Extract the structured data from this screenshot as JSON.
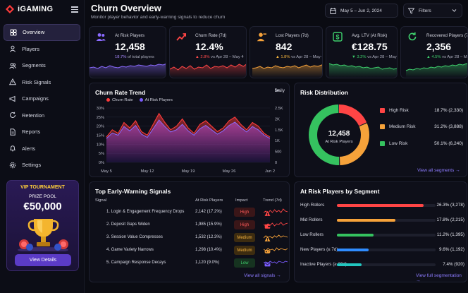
{
  "brand": {
    "name": "iGAMING"
  },
  "nav": [
    {
      "label": "Overview",
      "icon": "grid-icon",
      "active": true
    },
    {
      "label": "Players",
      "icon": "user-icon"
    },
    {
      "label": "Segments",
      "icon": "users-icon"
    },
    {
      "label": "Risk Signals",
      "icon": "alert-triangle-icon"
    },
    {
      "label": "Campaigns",
      "icon": "megaphone-icon"
    },
    {
      "label": "Retention",
      "icon": "refresh-icon"
    },
    {
      "label": "Reports",
      "icon": "file-icon"
    },
    {
      "label": "Alerts",
      "icon": "bell-icon"
    },
    {
      "label": "Settings",
      "icon": "gear-icon"
    }
  ],
  "promo": {
    "vip": "VIP TOURNAMENT",
    "prize_label": "PRIZE POOL",
    "amount": "€50,000",
    "button": "View Details"
  },
  "header": {
    "title": "Churn Overview",
    "subtitle": "Monitor player behavior and early-warning signals to reduce churn",
    "date_range": "May 5 – Jun 2, 2024",
    "filters_label": "Filters"
  },
  "kpis": [
    {
      "label": "At Risk Players",
      "value": "12,458",
      "delta": "18.7%",
      "delta_suffix": " of total players",
      "delta_type": "pct",
      "color": "#8b6bff",
      "icon": "users-icon"
    },
    {
      "label": "Churn Rate (7d)",
      "value": "12.4%",
      "delta": "▲ 2.8%",
      "delta_suffix": " vs Apr 28 – May 4",
      "delta_type": "dn",
      "color": "#ff4545",
      "icon": "trend-up-icon"
    },
    {
      "label": "Lost Players (7d)",
      "value": "842",
      "delta": "▲ 1.8%",
      "delta_suffix": " vs Apr 28 – May 4",
      "delta_type": "warn",
      "color": "#f6a23a",
      "icon": "user-minus-icon"
    },
    {
      "label": "Avg. LTV (At Risk)",
      "value": "€128.75",
      "delta": "▼ 3.2%",
      "delta_suffix": " vs Apr 28 – May 4",
      "delta_type": "up",
      "color": "#3ecf6c",
      "icon": "dollar-icon"
    },
    {
      "label": "Recovered Players (7d)",
      "value": "2,356",
      "delta": "▲ 4.5%",
      "delta_suffix": " vs Apr 28 – May 4",
      "delta_type": "up",
      "color": "#3ecf6c",
      "icon": "recycle-icon"
    }
  ],
  "trend": {
    "title": "Churn Rate Trend",
    "period": "Daily",
    "legend": [
      {
        "name": "Churn Rate",
        "color": "#ff3b3b"
      },
      {
        "name": "At Risk Players",
        "color": "#7b5cff"
      }
    ]
  },
  "chart_data": {
    "type": "area",
    "x": [
      "May 5",
      "May 6",
      "May 7",
      "May 8",
      "May 9",
      "May 10",
      "May 11",
      "May 12",
      "May 13",
      "May 14",
      "May 15",
      "May 16",
      "May 17",
      "May 18",
      "May 19",
      "May 20",
      "May 21",
      "May 22",
      "May 23",
      "May 24",
      "May 25",
      "May 26",
      "May 27",
      "May 28",
      "May 29",
      "May 30",
      "May 31",
      "Jun 1",
      "Jun 2"
    ],
    "x_ticks": [
      "May 5",
      "May 12",
      "May 19",
      "May 26",
      "Jun 2"
    ],
    "y_left_ticks": [
      "0%",
      "5%",
      "10%",
      "15%",
      "20%",
      "25%",
      "30%"
    ],
    "y_right_ticks": [
      "0",
      "500",
      "1K",
      "1.5K",
      "2K",
      "2.5K"
    ],
    "ylim_left": [
      0,
      30
    ],
    "ylim_right": [
      0,
      2500
    ],
    "series": [
      {
        "name": "Churn Rate",
        "axis": "left",
        "values": [
          14,
          18,
          16,
          22,
          19,
          23,
          17,
          15,
          21,
          27,
          22,
          18,
          20,
          24,
          19,
          16,
          21,
          23,
          20,
          17,
          19,
          23,
          25,
          21,
          18,
          22,
          20,
          16,
          14
        ]
      },
      {
        "name": "At Risk Players",
        "axis": "right",
        "values": [
          1100,
          1350,
          1250,
          1650,
          1450,
          1700,
          1300,
          1150,
          1550,
          1950,
          1650,
          1400,
          1500,
          1750,
          1450,
          1250,
          1550,
          1700,
          1500,
          1300,
          1450,
          1700,
          1850,
          1600,
          1400,
          1650,
          1500,
          1250,
          1100
        ]
      }
    ],
    "grid": true
  },
  "risk": {
    "title": "Risk Distribution",
    "total": "12,458",
    "total_label": "At Risk Players",
    "items": [
      {
        "name": "High Risk",
        "pct": 18.7,
        "label": "18.7%",
        "count": "(2,330)",
        "color": "#ff4545"
      },
      {
        "name": "Medium Risk",
        "pct": 31.2,
        "label": "31.2%",
        "count": "(3,888)",
        "color": "#f6a23a"
      },
      {
        "name": "Low Risk",
        "pct": 50.1,
        "label": "50.1%",
        "count": "(6,240)",
        "color": "#35c25f"
      }
    ],
    "link": "View all segments →"
  },
  "signals": {
    "title": "Top Early-Warning Signals",
    "headers": {
      "signal": "Signal",
      "count": "At Risk Players",
      "impact": "Impact",
      "trend": "Trend (7d)"
    },
    "rows": [
      {
        "name": "1. Login & Engagement Frequency Drops",
        "count": "2,142 (17.2%)",
        "impact": "High",
        "level": "high",
        "color": "#ff4545",
        "icon": "warning-icon"
      },
      {
        "name": "2. Deposit Gaps Widen",
        "count": "1,985 (15.9%)",
        "impact": "High",
        "level": "high",
        "color": "#ff4545",
        "icon": "wallet-icon"
      },
      {
        "name": "3. Session Value Compresses",
        "count": "1,532 (12.3%)",
        "impact": "Medium",
        "level": "med",
        "color": "#f6a23a",
        "icon": "warning-icon"
      },
      {
        "name": "4. Game Variety Narrows",
        "count": "1,298 (10.4%)",
        "impact": "Medium",
        "level": "med",
        "color": "#f6a23a",
        "icon": "gamepad-icon"
      },
      {
        "name": "5. Campaign Response Decays",
        "count": "1,120 (9.0%)",
        "impact": "Low",
        "level": "low",
        "color": "#7b5cff",
        "icon": "mail-icon"
      }
    ],
    "link": "View all signals →"
  },
  "segments": {
    "title": "At Risk Players by Segment",
    "rows": [
      {
        "name": "High Rollers",
        "pct": 26.3,
        "label": "26.3%",
        "count": "(3,278)",
        "color": "#ff4545"
      },
      {
        "name": "Mid Rollers",
        "pct": 17.8,
        "label": "17.8%",
        "count": "(2,215)",
        "color": "#f6a23a"
      },
      {
        "name": "Low Rollers",
        "pct": 11.2,
        "label": "11.2%",
        "count": "(1,395)",
        "color": "#35c25f"
      },
      {
        "name": "New Players (≤ 7d)",
        "pct": 9.6,
        "label": "9.6%",
        "count": "(1,192)",
        "color": "#2f8cff"
      },
      {
        "name": "Inactive Players (≥ 30d)",
        "pct": 7.4,
        "label": "7.4%",
        "count": "(920)",
        "color": "#22c7c0"
      }
    ],
    "link": "View full segmentation →"
  }
}
